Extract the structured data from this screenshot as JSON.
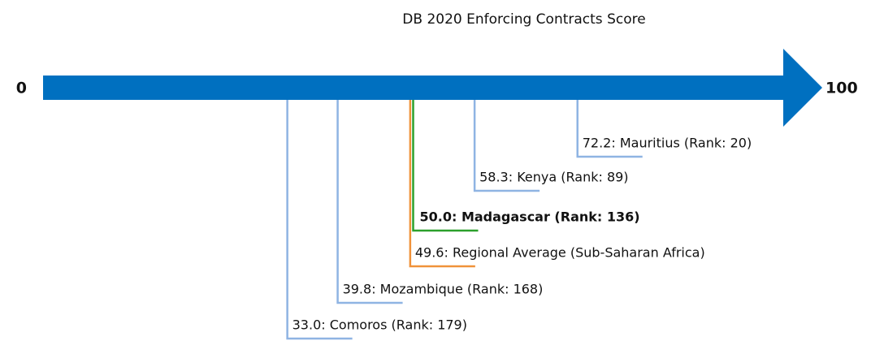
{
  "chart_data": {
    "type": "number-line",
    "title": "DB 2020 Enforcing Contracts Score",
    "xlim": [
      0,
      100
    ],
    "xticks": [
      0,
      100
    ],
    "axis_color": "#0070c0",
    "values": [
      72.2,
      58.3,
      50.0,
      49.6,
      39.8,
      33.0
    ],
    "value_labels": [
      "72.2: Mauritius (Rank: 20)",
      "58.3: Kenya (Rank: 89)",
      "50.0: Madagascar (Rank: 136)",
      "49.6: Regional Average (Sub-Saharan Africa)",
      "39.8: Mozambique (Rank: 168)",
      "33.0: Comoros (Rank: 179)"
    ],
    "colors": [
      "#8fb4e3",
      "#8fb4e3",
      "#2ca02c",
      "#f0923a",
      "#8fb4e3",
      "#8fb4e3"
    ],
    "highlight": 2
  }
}
